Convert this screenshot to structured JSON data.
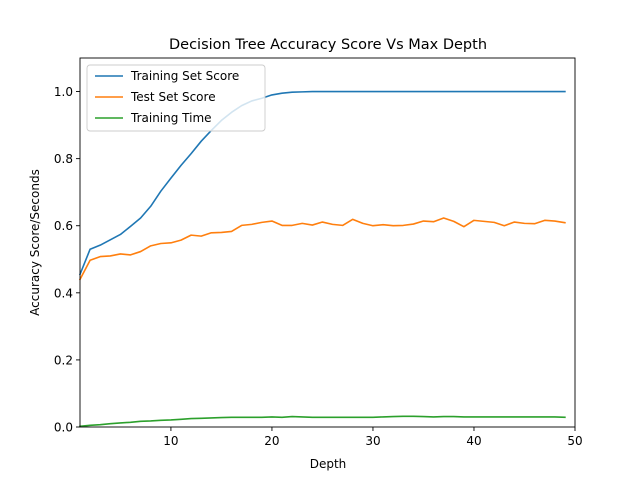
{
  "chart_data": {
    "type": "line",
    "title": "Decision Tree Accuracy Score Vs Max Depth",
    "xlabel": "Depth",
    "ylabel": "Accuracy Score/Seconds",
    "xlim": [
      1,
      50
    ],
    "ylim": [
      0,
      1.1
    ],
    "xticks": [
      10,
      20,
      30,
      40,
      50
    ],
    "yticks": [
      0.0,
      0.2,
      0.4,
      0.6,
      0.8,
      1.0
    ],
    "xtick_labels": [
      "10",
      "20",
      "30",
      "40",
      "50"
    ],
    "ytick_labels": [
      "0.0",
      "0.2",
      "0.4",
      "0.6",
      "0.8",
      "1.0"
    ],
    "grid": false,
    "legend_position": "top-left",
    "x": [
      1,
      2,
      3,
      4,
      5,
      6,
      7,
      8,
      9,
      10,
      11,
      12,
      13,
      14,
      15,
      16,
      17,
      18,
      19,
      20,
      21,
      22,
      23,
      24,
      25,
      26,
      27,
      28,
      29,
      30,
      31,
      32,
      33,
      34,
      35,
      36,
      37,
      38,
      39,
      40,
      41,
      42,
      43,
      44,
      45,
      46,
      47,
      48,
      49
    ],
    "series": [
      {
        "name": "Training Set Score",
        "color": "#1f77b4",
        "values": [
          0.455,
          0.53,
          0.542,
          0.558,
          0.574,
          0.598,
          0.623,
          0.658,
          0.703,
          0.742,
          0.78,
          0.815,
          0.852,
          0.884,
          0.914,
          0.938,
          0.958,
          0.972,
          0.98,
          0.99,
          0.995,
          0.998,
          0.999,
          1.0,
          1.0,
          1.0,
          1.0,
          1.0,
          1.0,
          1.0,
          1.0,
          1.0,
          1.0,
          1.0,
          1.0,
          1.0,
          1.0,
          1.0,
          1.0,
          1.0,
          1.0,
          1.0,
          1.0,
          1.0,
          1.0,
          1.0,
          1.0,
          1.0,
          1.0
        ]
      },
      {
        "name": "Test Set Score",
        "color": "#ff7f0e",
        "values": [
          0.44,
          0.497,
          0.508,
          0.51,
          0.516,
          0.513,
          0.523,
          0.54,
          0.547,
          0.549,
          0.557,
          0.572,
          0.569,
          0.579,
          0.58,
          0.583,
          0.601,
          0.604,
          0.61,
          0.614,
          0.601,
          0.601,
          0.607,
          0.602,
          0.611,
          0.604,
          0.601,
          0.619,
          0.607,
          0.6,
          0.603,
          0.6,
          0.601,
          0.605,
          0.614,
          0.612,
          0.623,
          0.613,
          0.597,
          0.616,
          0.613,
          0.61,
          0.6,
          0.611,
          0.607,
          0.606,
          0.616,
          0.614,
          0.609
        ]
      },
      {
        "name": "Training Time",
        "color": "#2ca02c",
        "values": [
          0.002,
          0.005,
          0.007,
          0.01,
          0.012,
          0.014,
          0.017,
          0.018,
          0.02,
          0.021,
          0.023,
          0.025,
          0.026,
          0.027,
          0.028,
          0.029,
          0.029,
          0.029,
          0.029,
          0.03,
          0.029,
          0.031,
          0.03,
          0.029,
          0.029,
          0.029,
          0.029,
          0.029,
          0.029,
          0.029,
          0.03,
          0.031,
          0.032,
          0.032,
          0.031,
          0.03,
          0.031,
          0.031,
          0.03,
          0.03,
          0.03,
          0.03,
          0.03,
          0.03,
          0.03,
          0.03,
          0.03,
          0.03,
          0.029
        ]
      }
    ]
  }
}
